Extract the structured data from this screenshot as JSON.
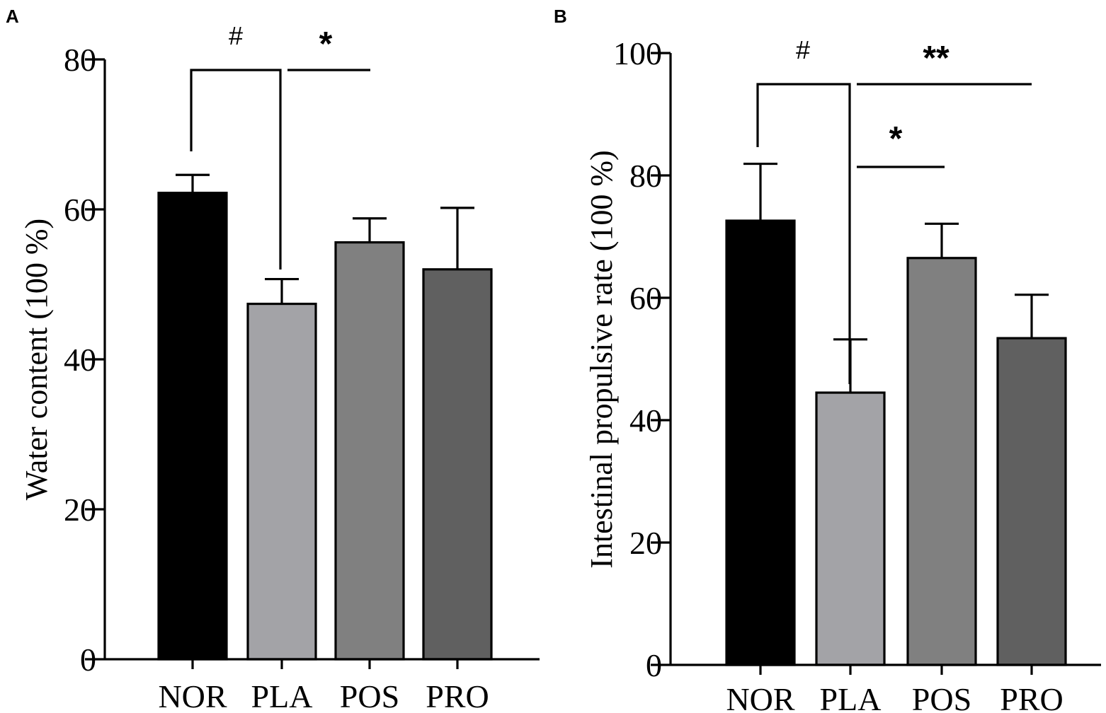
{
  "chart_data": [
    {
      "panel": "A",
      "type": "bar",
      "categories": [
        "NOR",
        "PLA",
        "POS",
        "PRO"
      ],
      "values": [
        62.2,
        47.4,
        55.6,
        52.0
      ],
      "errors": [
        2.4,
        3.3,
        3.2,
        8.2
      ],
      "colors": [
        "#000000",
        "#a3a3a7",
        "#808080",
        "#606060"
      ],
      "ylabel": "Water content (100 %)",
      "xlabel": "",
      "ylim": [
        0,
        80
      ],
      "yticks": [
        "0",
        "20",
        "40",
        "60",
        "80"
      ],
      "significance": [
        {
          "from": "NOR",
          "to": "PLA",
          "label": "#",
          "style": "bracket"
        },
        {
          "from": "PLA",
          "to": "POS",
          "label": "*",
          "style": "line"
        }
      ]
    },
    {
      "panel": "B",
      "type": "bar",
      "categories": [
        "NOR",
        "PLA",
        "POS",
        "PRO"
      ],
      "values": [
        72.6,
        44.5,
        66.5,
        53.4
      ],
      "errors": [
        9.3,
        8.7,
        5.6,
        7.1
      ],
      "colors": [
        "#000000",
        "#a3a3a7",
        "#808080",
        "#606060"
      ],
      "ylabel": "Intestinal propulsive rate (100 %)",
      "xlabel": "",
      "ylim": [
        0,
        100
      ],
      "yticks": [
        "0",
        "20",
        "40",
        "60",
        "80",
        "100"
      ],
      "significance": [
        {
          "from": "NOR",
          "to": "PLA",
          "label": "#",
          "style": "bracket"
        },
        {
          "from": "PLA",
          "to": "PRO",
          "label": "**",
          "style": "line"
        },
        {
          "from": "PLA",
          "to": "POS",
          "label": "*",
          "style": "line"
        }
      ]
    }
  ]
}
